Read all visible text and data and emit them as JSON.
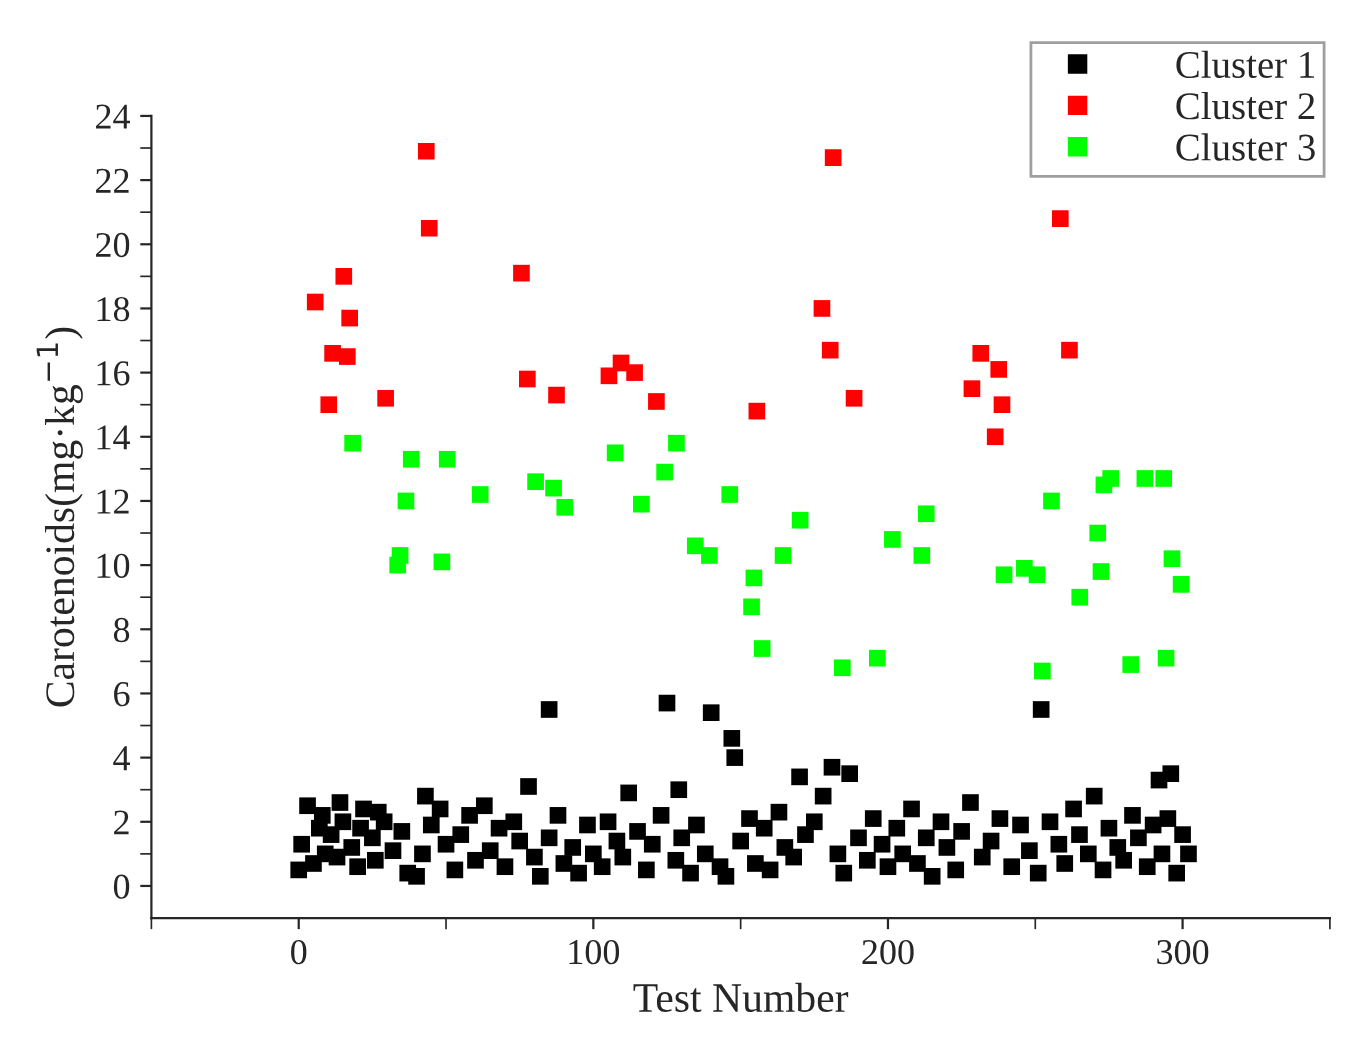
{
  "chart_data": {
    "type": "scatter",
    "xlabel": "Test Number",
    "ylabel": "Carotenoids(mg·kg$^{−1}$)",
    "xlim": [
      -50,
      350
    ],
    "xticks": [
      0,
      100,
      200,
      300
    ],
    "ylim": [
      -1,
      24
    ],
    "yticks": [
      0,
      2,
      4,
      6,
      8,
      10,
      12,
      14,
      16,
      18,
      20,
      22,
      24
    ],
    "grid": false,
    "legend": "top right",
    "marker": "square",
    "series": [
      {
        "name": "Cluster 1",
        "color": "#000000",
        "x": [
          0,
          1,
          3,
          5,
          7,
          8,
          9,
          11,
          13,
          14,
          15,
          18,
          20,
          21,
          22,
          25,
          26,
          27,
          29,
          32,
          35,
          37,
          40,
          42,
          43,
          45,
          48,
          50,
          53,
          55,
          58,
          60,
          63,
          65,
          68,
          70,
          73,
          75,
          78,
          80,
          82,
          85,
          85,
          88,
          90,
          93,
          95,
          98,
          100,
          103,
          105,
          108,
          110,
          112,
          115,
          118,
          120,
          123,
          125,
          128,
          129,
          130,
          133,
          135,
          138,
          140,
          143,
          145,
          147,
          148,
          150,
          153,
          155,
          158,
          160,
          163,
          165,
          168,
          170,
          172,
          175,
          178,
          181,
          183,
          185,
          187,
          190,
          193,
          195,
          198,
          200,
          203,
          205,
          208,
          210,
          213,
          215,
          218,
          220,
          223,
          225,
          228,
          232,
          235,
          238,
          242,
          245,
          248,
          251,
          252,
          255,
          258,
          260,
          263,
          265,
          268,
          270,
          273,
          275,
          278,
          280,
          283,
          285,
          288,
          290,
          292,
          293,
          295,
          296,
          298,
          300,
          302
        ],
        "values": [
          0.5,
          1.3,
          2.5,
          0.7,
          1.8,
          2.2,
          1.0,
          1.6,
          0.9,
          2.6,
          2.0,
          1.2,
          0.6,
          1.8,
          2.4,
          1.5,
          0.8,
          2.3,
          2.0,
          1.1,
          1.7,
          0.4,
          0.3,
          1.0,
          2.8,
          1.9,
          2.4,
          1.3,
          0.5,
          1.6,
          2.2,
          0.8,
          2.5,
          1.1,
          1.8,
          0.6,
          2.0,
          1.4,
          3.1,
          0.9,
          0.3,
          1.5,
          5.5,
          2.2,
          0.7,
          1.2,
          0.4,
          1.9,
          1.0,
          0.6,
          2.0,
          1.4,
          0.9,
          2.9,
          1.7,
          0.5,
          1.3,
          2.2,
          5.7,
          0.8,
          3.0,
          1.5,
          0.4,
          1.9,
          1.0,
          5.4,
          0.6,
          0.3,
          4.6,
          4.0,
          1.4,
          2.1,
          0.7,
          1.8,
          0.5,
          2.3,
          1.2,
          0.9,
          3.4,
          1.6,
          2.0,
          2.8,
          3.7,
          1.0,
          0.4,
          3.5,
          1.5,
          0.8,
          2.1,
          1.3,
          0.6,
          1.8,
          1.0,
          2.4,
          0.7,
          1.5,
          0.3,
          2.0,
          1.2,
          0.5,
          1.7,
          2.6,
          0.9,
          1.4,
          2.1,
          0.6,
          1.9,
          1.1,
          0.4,
          5.5,
          2.0,
          1.3,
          0.7,
          2.4,
          1.6,
          1.0,
          2.8,
          0.5,
          1.8,
          1.2,
          0.8,
          2.2,
          1.5,
          0.6,
          1.9,
          3.3,
          1.0,
          2.1,
          3.5,
          0.4,
          1.6,
          1.0
        ]
      },
      {
        "name": "Cluster 2",
        "color": "#ff0000",
        "x": [
          5.6,
          10.2,
          11.5,
          15.3,
          16.5,
          17.3,
          29.5,
          43.3,
          44.3,
          75.6,
          77.6,
          87.5,
          105.3,
          109.4,
          114,
          121.4,
          155.5,
          177.6,
          180.4,
          181.4,
          188.5,
          228.5,
          231.5,
          236.4,
          237.6,
          238.7,
          258.5,
          261.6
        ],
        "values": [
          18.2,
          15.0,
          16.6,
          19.0,
          16.5,
          17.7,
          15.2,
          22.9,
          20.5,
          19.1,
          15.8,
          15.3,
          15.9,
          16.3,
          16.0,
          15.1,
          14.8,
          18.0,
          16.7,
          22.7,
          15.2,
          15.5,
          16.6,
          14.0,
          16.1,
          15.0,
          20.8,
          16.7
        ]
      },
      {
        "name": "Cluster 3",
        "color": "#00ff00",
        "x": [
          18.3,
          33.6,
          34.4,
          36.4,
          38.2,
          48.6,
          50.4,
          61.6,
          80.4,
          86.5,
          90.3,
          107.4,
          116.3,
          124.2,
          128.2,
          134.6,
          139.4,
          146.3,
          153.7,
          154.5,
          157.3,
          164.4,
          170.2,
          184.5,
          196.4,
          201.5,
          211.5,
          213,
          239.4,
          246.3,
          250.6,
          252.4,
          255.5,
          265.1,
          271.2,
          272.3,
          273.3,
          275.6,
          282.4,
          287.2,
          293.6,
          294.4,
          296.4,
          299.5
        ],
        "values": [
          13.8,
          10.0,
          10.3,
          12.0,
          13.3,
          10.1,
          13.3,
          12.2,
          12.6,
          12.4,
          11.8,
          13.5,
          11.9,
          12.9,
          13.8,
          10.6,
          10.3,
          12.2,
          8.7,
          9.6,
          7.4,
          10.3,
          11.4,
          6.8,
          7.1,
          10.8,
          10.3,
          11.6,
          9.7,
          9.9,
          9.7,
          6.7,
          12.0,
          9.0,
          11.0,
          9.8,
          12.5,
          12.7,
          6.9,
          12.7,
          12.7,
          7.1,
          10.2,
          9.4
        ]
      }
    ]
  }
}
